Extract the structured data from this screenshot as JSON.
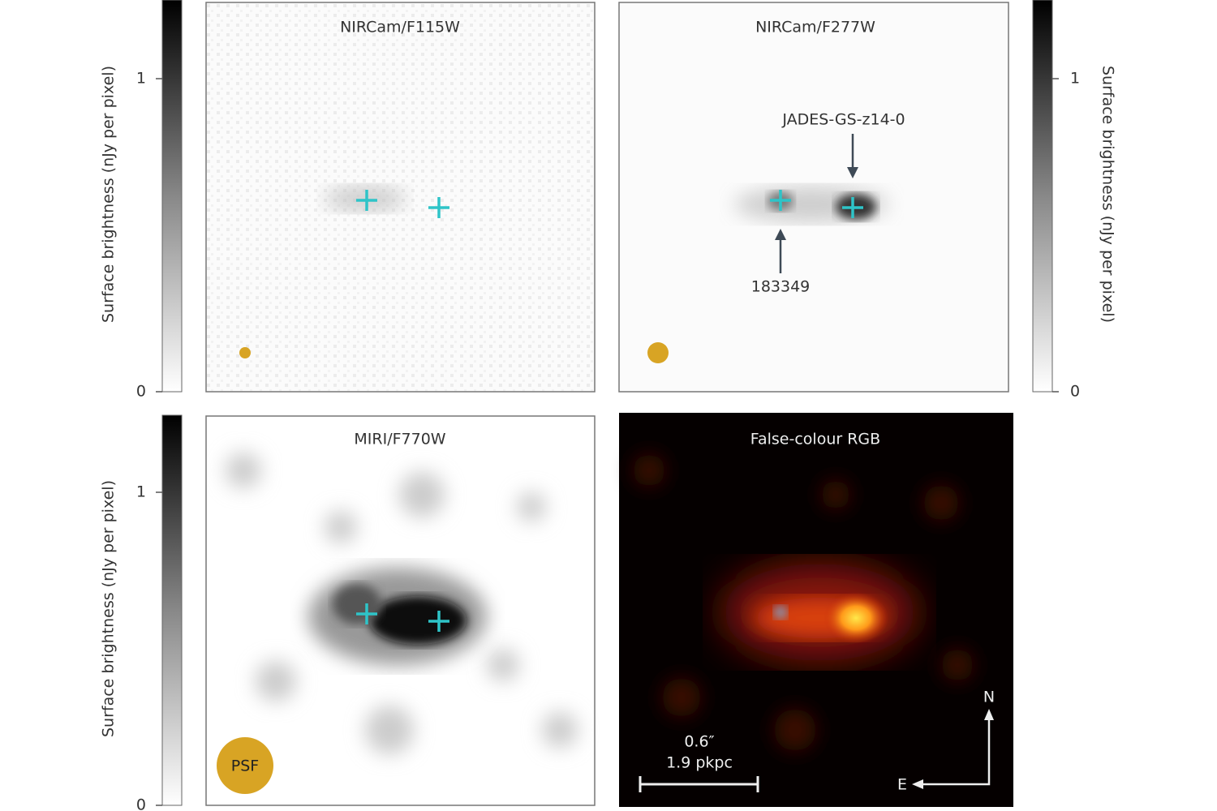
{
  "colorbars": [
    {
      "label": "Surface brightness (nJy per pixel)",
      "ticks": [
        0,
        1
      ]
    },
    {
      "label": "Surface brightness (nJy per pixel)",
      "ticks": [
        0,
        1
      ]
    },
    {
      "label": "Surface brightness (nJy per pixel)",
      "ticks": [
        0,
        1
      ]
    }
  ],
  "panels": [
    {
      "title": "NIRCam/F115W"
    },
    {
      "title": "NIRCam/F277W",
      "annotations": [
        "JADES-GS-z14-0",
        "183349"
      ]
    },
    {
      "title": "MIRI/F770W",
      "psf_label": "PSF"
    },
    {
      "title": "False-colour RGB",
      "scale_bar": [
        "0.6″",
        "1.9 pkpc"
      ],
      "compass": [
        "N",
        "E"
      ]
    }
  ]
}
